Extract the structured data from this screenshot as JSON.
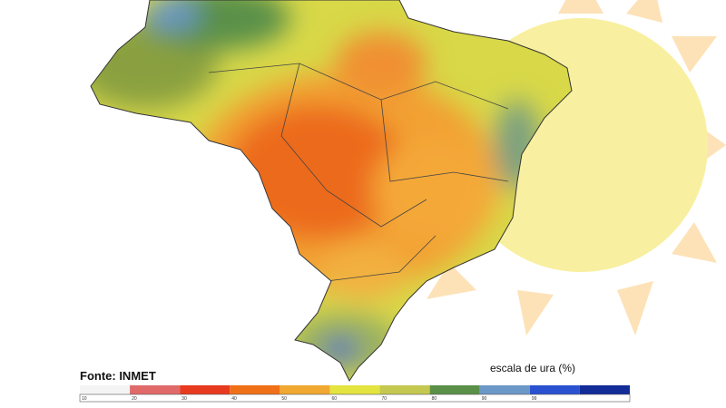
{
  "source": "Fonte: INMET",
  "legend": {
    "title": "escala de ura (%)",
    "labels": [
      10,
      20,
      30,
      40,
      50,
      60,
      70,
      80,
      90,
      99
    ],
    "colors": [
      "#f4f4f4",
      "#e06a6a",
      "#e83a1e",
      "#f07018",
      "#f0a830",
      "#e4e440",
      "#c4c850",
      "#5a9048",
      "#6c98c8",
      "#2a52d0",
      "#122c98"
    ]
  }
}
